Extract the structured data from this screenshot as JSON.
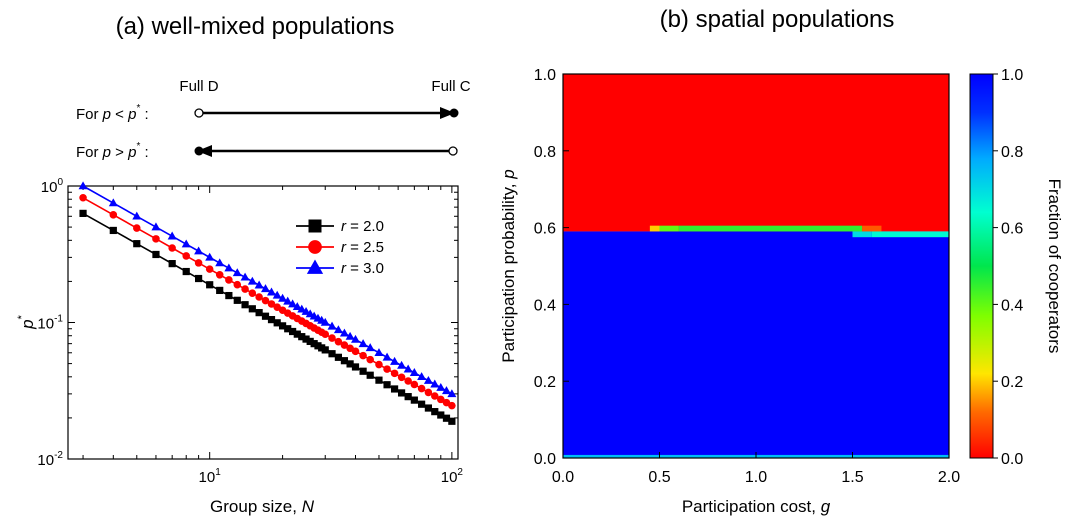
{
  "panel_a": {
    "title": "(a) well-mixed populations",
    "schematic": {
      "left_label": "Full D",
      "right_label": "Full C",
      "row1": {
        "prefix": "For ",
        "var": "p",
        "op": " < ",
        "var2": "p",
        "star": "*",
        "suffix": " :"
      },
      "row2": {
        "prefix": "For ",
        "var": "p",
        "op": " > ",
        "var2": "p",
        "star": "*",
        "suffix": " :"
      }
    }
  },
  "panel_b": {
    "title": "(b) spatial populations",
    "colorbar_label": "Fraction of cooperators",
    "colorbar_ticks": [
      "1.0",
      "0.8",
      "0.6",
      "0.4",
      "0.2",
      "0.0"
    ]
  },
  "chart_data": [
    {
      "type": "line",
      "xscale": "log",
      "yscale": "log",
      "xlabel": "Group size, N",
      "xlabel_text": "Group size, ",
      "xlabel_var": "N",
      "ylabel": "p*",
      "ylabel_var": "p",
      "ylabel_star": "*",
      "xlim": [
        2.6,
        106
      ],
      "ylim": [
        0.01,
        1.0
      ],
      "x_tick_labels": [
        {
          "base": "10",
          "exp": "1",
          "value": 10
        },
        {
          "base": "10",
          "exp": "2",
          "value": 100
        }
      ],
      "y_tick_labels": [
        {
          "base": "10",
          "exp": "0",
          "value": 1
        },
        {
          "base": "10",
          "exp": "-1",
          "value": 0.1
        },
        {
          "base": "10",
          "exp": "-2",
          "value": 0.01
        }
      ],
      "legend_position": "top-right",
      "series": [
        {
          "name": "r = 2.0",
          "var": "r",
          "rest": " = 2.0",
          "color": "#000000",
          "marker": "square",
          "y_at_N3": 0.63,
          "slope": -1.0,
          "x": [
            3,
            4,
            5,
            6,
            7,
            8,
            9,
            10,
            11,
            12,
            13,
            14,
            15,
            16,
            17,
            18,
            19,
            20,
            21,
            22,
            23,
            24,
            25,
            26,
            27,
            28,
            29,
            30,
            32,
            34,
            36,
            38,
            40,
            43,
            46,
            50,
            54,
            58,
            62,
            66,
            70,
            75,
            80,
            85,
            90,
            95,
            100
          ]
        },
        {
          "name": "r = 2.5",
          "var": "r",
          "rest": " = 2.5",
          "color": "#ff0000",
          "marker": "circle",
          "y_at_N3": 0.82,
          "slope": -1.0,
          "x": [
            3,
            4,
            5,
            6,
            7,
            8,
            9,
            10,
            11,
            12,
            13,
            14,
            15,
            16,
            17,
            18,
            19,
            20,
            21,
            22,
            23,
            24,
            25,
            26,
            27,
            28,
            29,
            30,
            32,
            34,
            36,
            38,
            40,
            43,
            46,
            50,
            54,
            58,
            62,
            66,
            70,
            75,
            80,
            85,
            90,
            95,
            100
          ]
        },
        {
          "name": "r = 3.0",
          "var": "r",
          "rest": " = 3.0",
          "color": "#0000ff",
          "marker": "triangle",
          "y_at_N3": 1.0,
          "slope": -1.0,
          "x": [
            3,
            4,
            5,
            6,
            7,
            8,
            9,
            10,
            11,
            12,
            13,
            14,
            15,
            16,
            17,
            18,
            19,
            20,
            21,
            22,
            23,
            24,
            25,
            26,
            27,
            28,
            29,
            30,
            32,
            34,
            36,
            38,
            40,
            43,
            46,
            50,
            54,
            58,
            62,
            66,
            70,
            75,
            80,
            85,
            90,
            95,
            100
          ]
        }
      ]
    },
    {
      "type": "heatmap",
      "xlabel": "Participation cost, g",
      "xlabel_text": "Participation cost, ",
      "xlabel_var": "g",
      "ylabel": "Participation probability, p",
      "ylabel_text": "Participation probability, ",
      "ylabel_var": "p",
      "xlim": [
        0.0,
        2.0
      ],
      "ylim": [
        0.0,
        1.0
      ],
      "x_ticks": [
        "0.0",
        "0.5",
        "1.0",
        "1.5",
        "2.0"
      ],
      "y_ticks": [
        "0.0",
        "0.2",
        "0.4",
        "0.6",
        "0.8",
        "1.0"
      ],
      "colorscale": "jet",
      "regions": [
        {
          "x0": 0.0,
          "x1": 2.0,
          "y0": 0.59,
          "y1": 1.0,
          "value": 0.0
        },
        {
          "x0": 0.0,
          "x1": 2.0,
          "y0": 0.0,
          "y1": 0.59,
          "value": 1.0
        }
      ],
      "transition_row_above": {
        "y0": 0.59,
        "y1": 0.605,
        "cells": [
          {
            "x0": 0.45,
            "x1": 0.5,
            "value": 0.2
          },
          {
            "x0": 0.5,
            "x1": 0.6,
            "value": 0.4
          },
          {
            "x0": 0.6,
            "x1": 1.55,
            "value": 0.45
          },
          {
            "x0": 1.55,
            "x1": 1.65,
            "value": 0.1
          }
        ]
      },
      "transition_row_below": {
        "y0": 0.575,
        "y1": 0.59,
        "cells": [
          {
            "x0": 1.5,
            "x1": 1.6,
            "value": 0.7
          },
          {
            "x0": 1.6,
            "x1": 2.0,
            "value": 0.65
          }
        ]
      },
      "bottom_row": {
        "y0": 0.0,
        "y1": 0.008,
        "value": 0.75
      }
    }
  ]
}
